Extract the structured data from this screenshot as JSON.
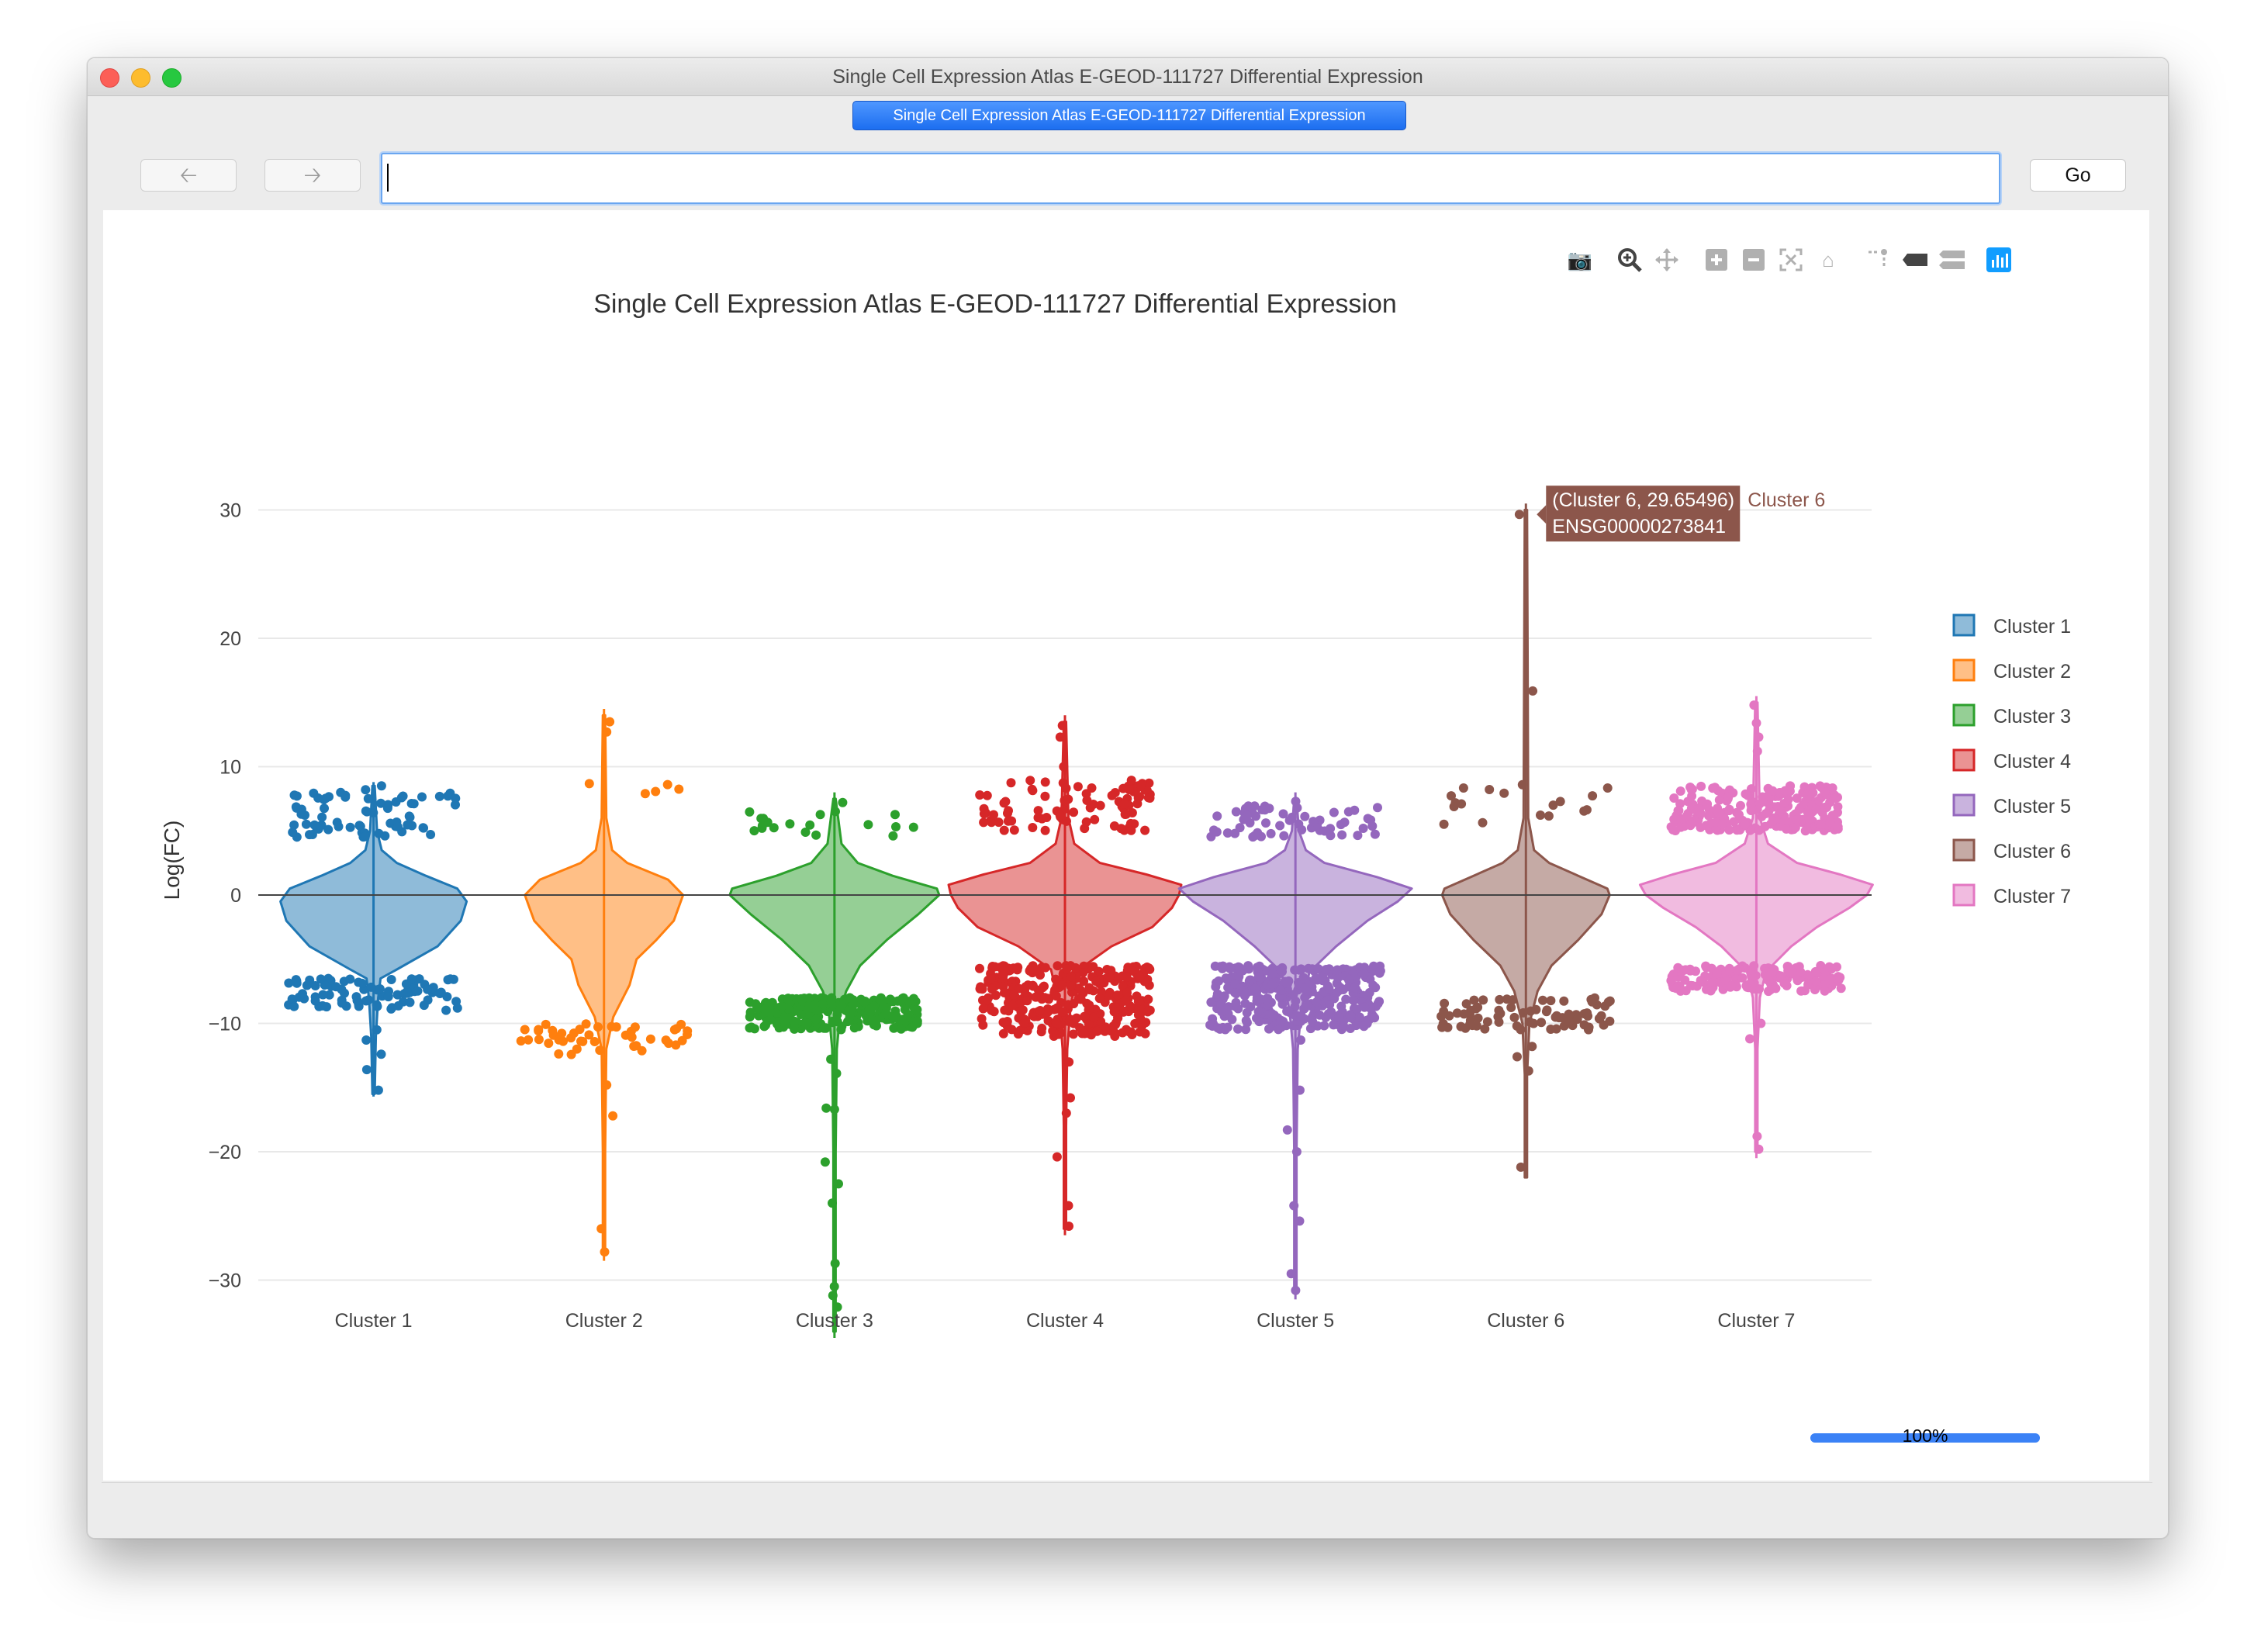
{
  "window": {
    "title": "Single Cell Expression Atlas E-GEOD-111727 Differential Expression"
  },
  "tab": {
    "label": "Single Cell Expression Atlas E-GEOD-111727 Differential Expression"
  },
  "toolbar": {
    "back_icon": "arrow-left-icon",
    "forward_icon": "arrow-right-icon",
    "url_value": "",
    "go_label": "Go"
  },
  "modebar": {
    "icons": [
      "camera-icon",
      "zoom-icon",
      "pan-icon",
      "zoom-in-icon",
      "zoom-out-icon",
      "autoscale-icon",
      "reset-axes-icon",
      "spike-lines-icon",
      "hover-closest-icon",
      "hover-compare-icon",
      "plotly-logo-icon"
    ]
  },
  "status": {
    "progress_label": "100%",
    "progress_value": 1.0
  },
  "chart_data": {
    "type": "violin",
    "title": "Single Cell Expression Atlas E-GEOD-111727 Differential Expression",
    "xlabel": "",
    "ylabel": "Log(FC)",
    "ylim": [
      -35,
      33
    ],
    "yticks": [
      30,
      20,
      10,
      0,
      -10,
      -20,
      -30
    ],
    "ytick_labels": [
      "30",
      "20",
      "10",
      "0",
      "−10",
      "−20",
      "−30"
    ],
    "zero_line": true,
    "grid": true,
    "legend_position": "right",
    "categories": [
      "Cluster 1",
      "Cluster 2",
      "Cluster 3",
      "Cluster 4",
      "Cluster 5",
      "Cluster 6",
      "Cluster 7"
    ],
    "series": [
      {
        "name": "Cluster 1",
        "color": "#1f77b4",
        "min": -15.7,
        "max": 8.8,
        "upper_band": [
          4.5,
          8
        ],
        "lower_band": [
          -6.5,
          -9
        ],
        "n_up": 70,
        "n_down": 90,
        "extremes": [
          -15.2,
          -13.6,
          -12.4,
          -11.3,
          -10.5,
          8.5,
          8.2
        ],
        "profile": [
          [
            -15.5,
            0.01
          ],
          [
            -11,
            0.02
          ],
          [
            -8,
            0.04
          ],
          [
            -6.5,
            0.06
          ],
          [
            -5.8,
            0.2
          ],
          [
            -4,
            0.55
          ],
          [
            -2,
            0.75
          ],
          [
            -0.5,
            0.8
          ],
          [
            0.5,
            0.72
          ],
          [
            1.5,
            0.45
          ],
          [
            2.5,
            0.2
          ],
          [
            3.5,
            0.07
          ],
          [
            5,
            0.03
          ],
          [
            8.5,
            0.01
          ]
        ]
      },
      {
        "name": "Cluster 2",
        "color": "#ff7f0e",
        "min": -28.5,
        "max": 14.5,
        "upper_band": [
          7.5,
          9
        ],
        "lower_band": [
          -10,
          -12.5
        ],
        "n_up": 5,
        "n_down": 45,
        "extremes": [
          13.5,
          12.7,
          -14.8,
          -17.2,
          -26,
          -27.8
        ],
        "profile": [
          [
            -28,
            0.01
          ],
          [
            -20,
            0.01
          ],
          [
            -12,
            0.02
          ],
          [
            -9.5,
            0.08
          ],
          [
            -7,
            0.22
          ],
          [
            -5,
            0.28
          ],
          [
            -3.5,
            0.45
          ],
          [
            -2,
            0.6
          ],
          [
            0,
            0.68
          ],
          [
            1.2,
            0.55
          ],
          [
            2.5,
            0.2
          ],
          [
            3.5,
            0.07
          ],
          [
            6,
            0.02
          ],
          [
            14,
            0.01
          ]
        ]
      },
      {
        "name": "Cluster 3",
        "color": "#2ca02c",
        "min": -34.5,
        "max": 8,
        "upper_band": [
          4.5,
          7
        ],
        "lower_band": [
          -8,
          -10.5
        ],
        "n_up": 18,
        "n_down": 260,
        "extremes": [
          -12.8,
          -13.9,
          -16.6,
          -16.7,
          -20.8,
          -22.5,
          -24,
          -28.7,
          -30.5,
          -31.2,
          -32.1,
          7.2,
          6.5
        ],
        "profile": [
          [
            -34,
            0.01
          ],
          [
            -20,
            0.01
          ],
          [
            -12,
            0.02
          ],
          [
            -9,
            0.05
          ],
          [
            -7.5,
            0.1
          ],
          [
            -5.5,
            0.22
          ],
          [
            -3.5,
            0.45
          ],
          [
            -1.5,
            0.72
          ],
          [
            0,
            0.9
          ],
          [
            0.5,
            0.88
          ],
          [
            1.5,
            0.5
          ],
          [
            2.5,
            0.2
          ],
          [
            4,
            0.06
          ],
          [
            7.5,
            0.01
          ]
        ]
      },
      {
        "name": "Cluster 4",
        "color": "#d62728",
        "min": -26.5,
        "max": 14,
        "upper_band": [
          5,
          9
        ],
        "lower_band": [
          -5.5,
          -11
        ],
        "n_up": 90,
        "n_down": 330,
        "extremes": [
          13.2,
          12.3,
          10,
          -13,
          -15.8,
          -17,
          -20.4,
          -24.2,
          -25.8
        ],
        "profile": [
          [
            -26,
            0.01
          ],
          [
            -18,
            0.01
          ],
          [
            -12,
            0.02
          ],
          [
            -8.5,
            0.05
          ],
          [
            -5.8,
            0.12
          ],
          [
            -4,
            0.4
          ],
          [
            -2.5,
            0.75
          ],
          [
            -1,
            0.92
          ],
          [
            0,
            0.98
          ],
          [
            0.8,
            1.0
          ],
          [
            1.6,
            0.7
          ],
          [
            2.5,
            0.3
          ],
          [
            4,
            0.08
          ],
          [
            6,
            0.03
          ],
          [
            13.5,
            0.01
          ]
        ]
      },
      {
        "name": "Cluster 5",
        "color": "#9467bd",
        "min": -31.5,
        "max": 8,
        "upper_band": [
          4.5,
          7
        ],
        "lower_band": [
          -5.5,
          -10.5
        ],
        "n_up": 60,
        "n_down": 340,
        "extremes": [
          -11.3,
          -15.2,
          -18.3,
          -20,
          -24.2,
          -25.4,
          -29.5,
          -30.8,
          7.3
        ],
        "profile": [
          [
            -31,
            0.01
          ],
          [
            -20,
            0.01
          ],
          [
            -12,
            0.02
          ],
          [
            -9,
            0.05
          ],
          [
            -6,
            0.12
          ],
          [
            -4,
            0.35
          ],
          [
            -2,
            0.62
          ],
          [
            -0.5,
            0.88
          ],
          [
            0.5,
            1.0
          ],
          [
            1.4,
            0.7
          ],
          [
            2.5,
            0.25
          ],
          [
            3.5,
            0.09
          ],
          [
            5,
            0.03
          ],
          [
            7.5,
            0.01
          ]
        ]
      },
      {
        "name": "Cluster 6",
        "color": "#8c564b",
        "min": -22,
        "max": 30.5,
        "upper_band": [
          5.5,
          9
        ],
        "lower_band": [
          -8,
          -10.5
        ],
        "n_up": 18,
        "n_down": 80,
        "extremes": [
          29.65496,
          15.9,
          -13.7,
          -21.2,
          -12.6,
          -11.8
        ],
        "profile": [
          [
            -22,
            0.01
          ],
          [
            -14,
            0.01
          ],
          [
            -10,
            0.03
          ],
          [
            -7.5,
            0.1
          ],
          [
            -5.5,
            0.22
          ],
          [
            -3.5,
            0.45
          ],
          [
            -1.5,
            0.65
          ],
          [
            0,
            0.72
          ],
          [
            0.5,
            0.7
          ],
          [
            1.5,
            0.45
          ],
          [
            2.5,
            0.2
          ],
          [
            3.5,
            0.07
          ],
          [
            6,
            0.02
          ],
          [
            30,
            0.01
          ]
        ]
      },
      {
        "name": "Cluster 7",
        "color": "#e377c2",
        "min": -20.5,
        "max": 15.5,
        "upper_band": [
          5,
          8.5
        ],
        "lower_band": [
          -5.5,
          -7.5
        ],
        "n_up": 230,
        "n_down": 170,
        "extremes": [
          14.8,
          13.4,
          12.3,
          11.2,
          -10,
          -11.2,
          -18.8,
          -19.8
        ],
        "profile": [
          [
            -20,
            0.01
          ],
          [
            -12,
            0.01
          ],
          [
            -8,
            0.03
          ],
          [
            -6,
            0.08
          ],
          [
            -4,
            0.3
          ],
          [
            -2.5,
            0.52
          ],
          [
            -1,
            0.8
          ],
          [
            0,
            0.95
          ],
          [
            0.8,
            1.0
          ],
          [
            1.6,
            0.72
          ],
          [
            2.5,
            0.35
          ],
          [
            4,
            0.1
          ],
          [
            6,
            0.03
          ],
          [
            15,
            0.01
          ]
        ]
      }
    ],
    "tooltip": {
      "cluster": "Cluster 6",
      "point_label": "(Cluster 6, 29.65496)",
      "gene": "ENSG00000273841",
      "trace_name": "Cluster 6",
      "y": 29.65496
    }
  }
}
